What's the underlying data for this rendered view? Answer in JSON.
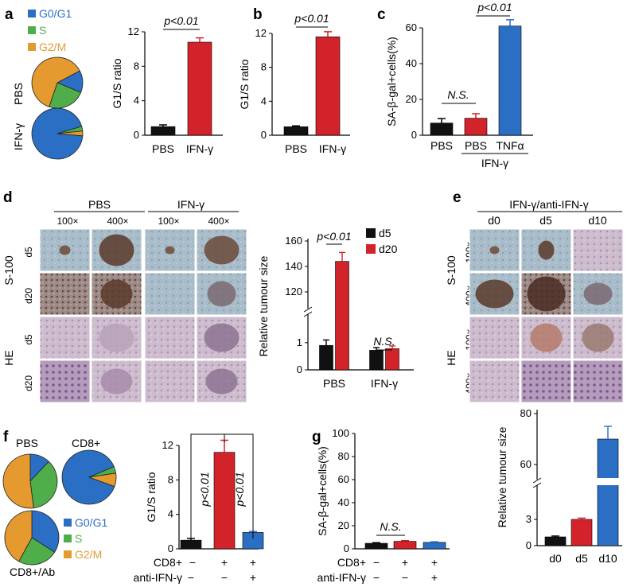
{
  "colors": {
    "g0g1": "#2a6fc4",
    "s": "#4fae4a",
    "g2m": "#e49a2e",
    "black": "#111111",
    "red": "#d2232a",
    "blue": "#2a6fc4"
  },
  "panels": {
    "a": "a",
    "b": "b",
    "c": "c",
    "d": "d",
    "e": "e",
    "f": "f",
    "g": "g"
  },
  "legend_cycle": [
    "G0/G1",
    "S",
    "G2/M"
  ],
  "pie_labels": {
    "a_top": "PBS",
    "a_bottom": "IFN-γ",
    "f_pbs": "PBS",
    "f_cd8": "CD8+",
    "f_ab": "CD8+/Ab"
  },
  "sig": {
    "p": "p<0.01",
    "ns": "N.S."
  },
  "micro": {
    "d_groups": [
      "PBS",
      "IFN-γ"
    ],
    "d_mags": [
      "100×",
      "400×",
      "100×",
      "400×"
    ],
    "d_stains": [
      "S-100",
      "HE"
    ],
    "d_days": [
      "d5",
      "d20",
      "d5",
      "d20"
    ],
    "e_group": "IFN-γ/anti-IFN-γ",
    "e_days": [
      "d0",
      "d5",
      "d10"
    ],
    "e_stains": [
      "S-100",
      "HE"
    ],
    "e_mags": [
      "100×",
      "400×",
      "100×",
      "400×"
    ]
  },
  "chart_data": [
    {
      "id": "a-pie",
      "type": "pie",
      "name": "PBS",
      "labels": [
        "G0/G1",
        "S",
        "G2/M"
      ],
      "values": [
        14,
        24,
        62
      ]
    },
    {
      "id": "a-pie2",
      "type": "pie",
      "name": "IFN-γ",
      "labels": [
        "G0/G1",
        "S",
        "G2/M"
      ],
      "values": [
        94,
        3,
        3
      ]
    },
    {
      "id": "a",
      "type": "bar",
      "categories": [
        "PBS",
        "IFN-γ"
      ],
      "values": [
        1.0,
        10.8
      ],
      "errors": [
        0.2,
        0.5
      ],
      "ylabel": "G1/S ratio",
      "ylim": [
        0,
        12
      ],
      "yticks": [
        0,
        4,
        8,
        12
      ],
      "colors": [
        "#111111",
        "#d2232a"
      ]
    },
    {
      "id": "b",
      "type": "bar",
      "categories": [
        "PBS",
        "IFN-γ"
      ],
      "values": [
        1.0,
        11.6
      ],
      "errors": [
        0.1,
        0.6
      ],
      "ylabel": "G1/S ratio",
      "ylim": [
        0,
        12
      ],
      "yticks": [
        0,
        4,
        8,
        12
      ],
      "colors": [
        "#111111",
        "#d2232a"
      ]
    },
    {
      "id": "c",
      "type": "bar",
      "categories": [
        "PBS",
        "PBS",
        "TNFα"
      ],
      "group_label": "IFN-γ",
      "values": [
        6.8,
        9.5,
        61
      ],
      "errors": [
        2.5,
        2.5,
        3.5
      ],
      "ylabel": "SA-β-gal+cells(%)",
      "ylim": [
        0,
        60
      ],
      "yticks": [
        0,
        20,
        40,
        60
      ],
      "colors": [
        "#111111",
        "#d2232a",
        "#2a6fc4"
      ]
    },
    {
      "id": "d",
      "type": "bar",
      "categories": [
        "PBS",
        "IFN-γ"
      ],
      "series": [
        {
          "name": "d5",
          "values": [
            0.9,
            0.72
          ],
          "errors": [
            0.2,
            0.1
          ]
        },
        {
          "name": "d20",
          "values": [
            144,
            0.78
          ],
          "errors": [
            7,
            0.1
          ]
        }
      ],
      "ylabel": "Relative tumour size",
      "yticks": [
        0,
        1,
        120,
        140,
        160
      ],
      "axis_break": true,
      "colors": [
        "#111111",
        "#d2232a"
      ]
    },
    {
      "id": "e",
      "type": "bar",
      "categories": [
        "d0",
        "d5",
        "d10"
      ],
      "values": [
        1.0,
        3.0,
        70
      ],
      "errors": [
        0.1,
        0.15,
        5
      ],
      "ylabel": "Relative tumour size",
      "yticks": [
        0,
        3,
        60,
        80
      ],
      "axis_break": true,
      "colors": [
        "#111111",
        "#d2232a",
        "#2a6fc4"
      ]
    },
    {
      "id": "f-pie-pbs",
      "type": "pie",
      "name": "PBS",
      "labels": [
        "G0/G1",
        "S",
        "G2/M"
      ],
      "values": [
        12,
        36,
        52
      ]
    },
    {
      "id": "f-pie-cd8",
      "type": "pie",
      "name": "CD8+",
      "labels": [
        "G0/G1",
        "S",
        "G2/M"
      ],
      "values": [
        88,
        4,
        8
      ]
    },
    {
      "id": "f-pie-ab",
      "type": "pie",
      "name": "CD8+/Ab",
      "labels": [
        "G0/G1",
        "S",
        "G2/M"
      ],
      "values": [
        34,
        24,
        42
      ]
    },
    {
      "id": "f",
      "type": "bar",
      "categories": [
        "CD8+ −",
        "CD8+ + / anti-IFN-γ −",
        "CD8+ + / anti-IFN-γ +"
      ],
      "values": [
        1.0,
        11.2,
        1.9
      ],
      "errors": [
        0.2,
        1.4,
        0.1
      ],
      "ylabel": "G1/S ratio",
      "ylim": [
        0,
        12
      ],
      "yticks": [
        0,
        4,
        8,
        12
      ],
      "colors": [
        "#111111",
        "#d2232a",
        "#2a6fc4"
      ],
      "row1_label": "CD8+",
      "row1": [
        "−",
        "+",
        "+"
      ],
      "row2_label": "anti-IFN-γ",
      "row2": [
        "−",
        "−",
        "+"
      ]
    },
    {
      "id": "g",
      "type": "bar",
      "categories": [
        "CD8+ −",
        "CD8+ + / anti-IFN-γ −",
        "CD8+ + / anti-IFN-γ +"
      ],
      "values": [
        4.8,
        6.5,
        5.6
      ],
      "errors": [
        0.5,
        0.6,
        0.5
      ],
      "ylabel": "SA-β-gal+cells(%)",
      "ylim": [
        0,
        100
      ],
      "yticks": [
        0,
        20,
        40,
        60,
        80,
        100
      ],
      "colors": [
        "#111111",
        "#d2232a",
        "#2a6fc4"
      ],
      "row1_label": "CD8+",
      "row1": [
        "−",
        "+",
        "+"
      ],
      "row2_label": "anti-IFN-γ",
      "row2": [
        "−",
        "−",
        "+"
      ]
    }
  ]
}
